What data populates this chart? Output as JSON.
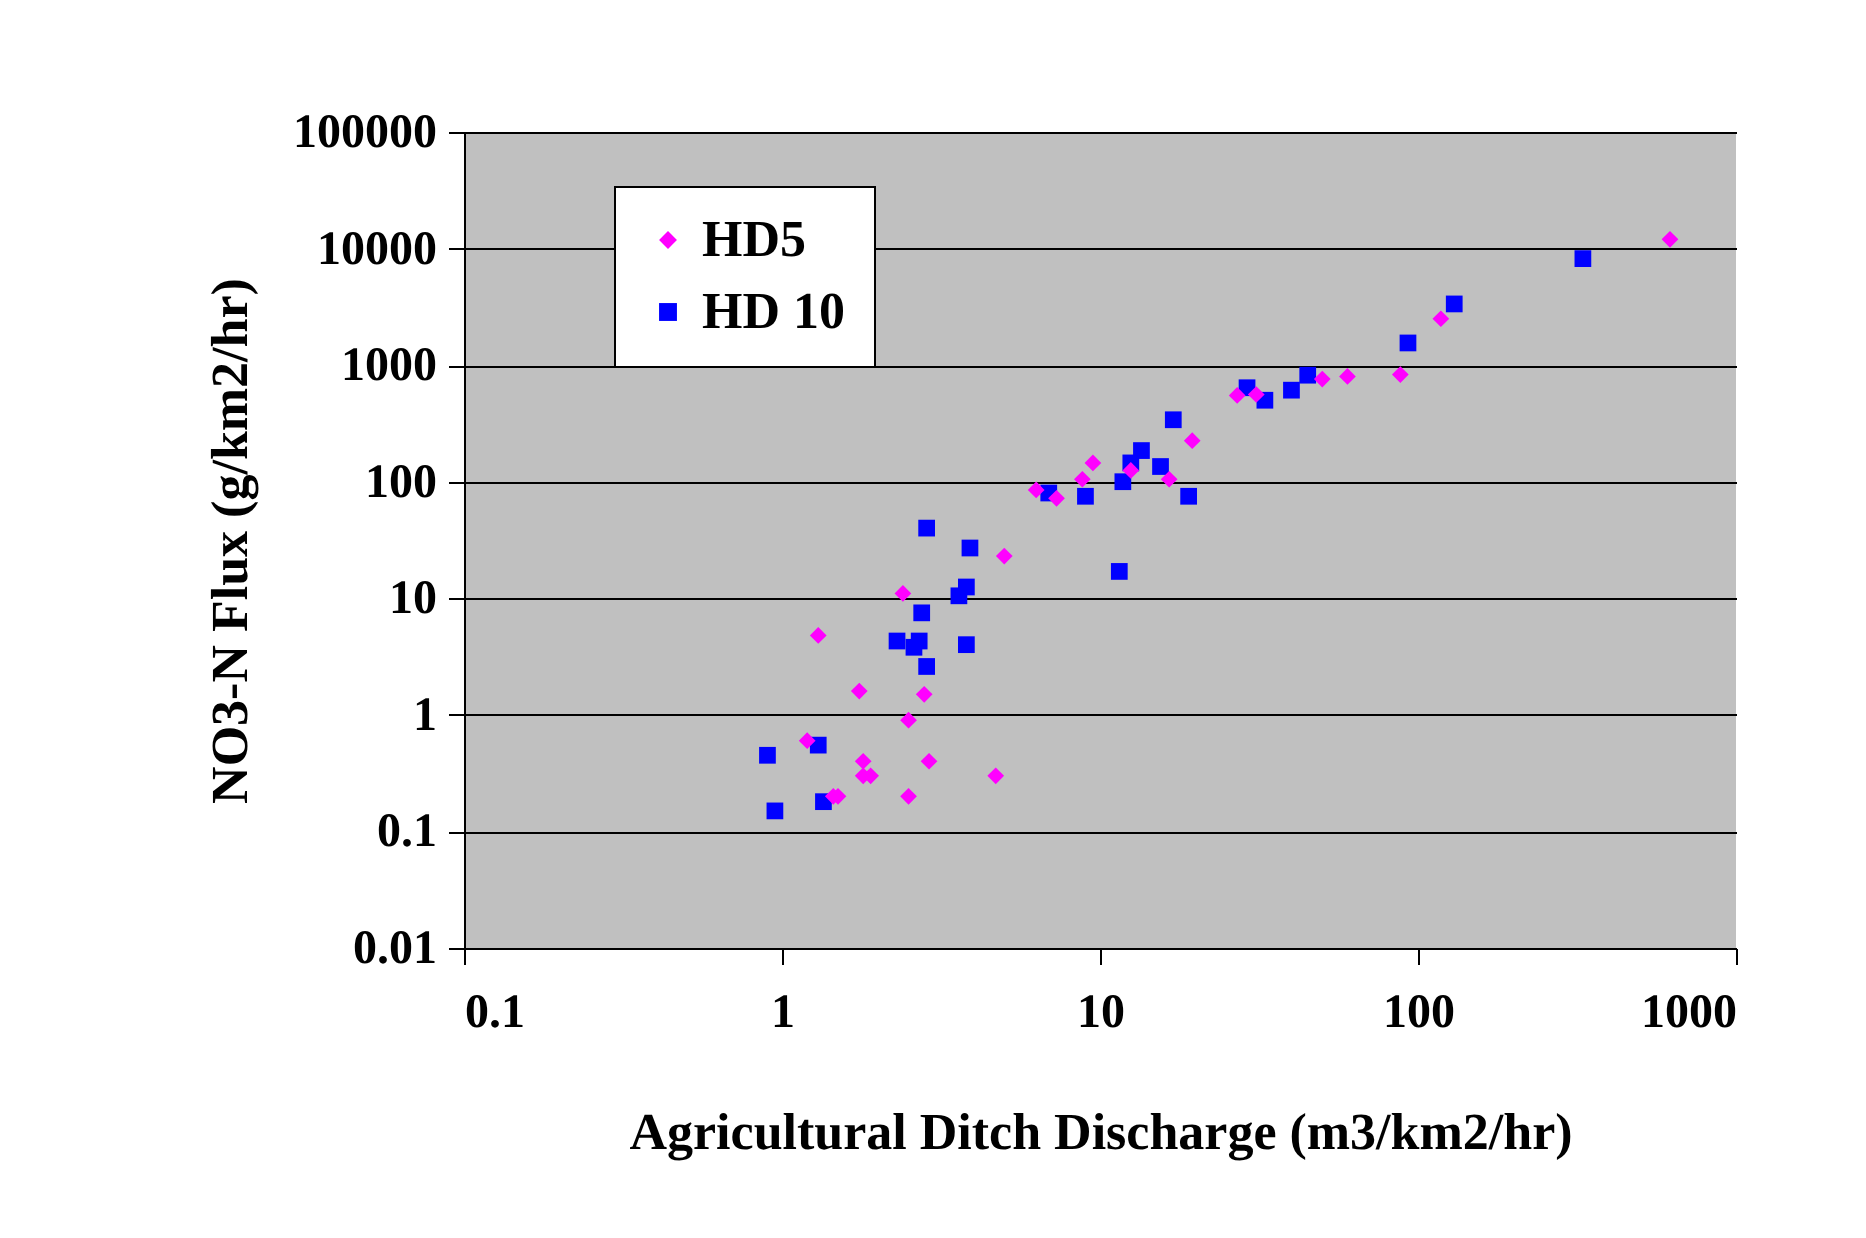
{
  "chart_data": {
    "type": "scatter",
    "xlabel": "Agricultural Ditch Discharge (m3/km2/hr)",
    "ylabel": "NO3-N Flux (g/km2/hr)",
    "log": "xy",
    "xlim": [
      0.1,
      1000
    ],
    "xticks": [
      0.1,
      1,
      10,
      100,
      1000
    ],
    "ylim": [
      0.01,
      100000
    ],
    "yticks": [
      0.01,
      0.1,
      1,
      10,
      100,
      1000,
      10000,
      100000
    ],
    "grid": "y",
    "legend": "top left",
    "series": [
      {
        "name": "HD5",
        "color": "#ff00ff",
        "marker": "diamond",
        "x": [
          1.3,
          1.2,
          1.75,
          1.8,
          1.8,
          1.9,
          1.5,
          1.45,
          2.5,
          2.8,
          2.4,
          2.5,
          2.9,
          4.7,
          5.0,
          6.3,
          7.3,
          8.8,
          9.5,
          12.5,
          16.5,
          19.5,
          27,
          31,
          50,
          60,
          88,
          118,
          620
        ],
        "values": [
          4.8,
          0.6,
          1.6,
          0.4,
          0.3,
          0.3,
          0.2,
          0.2,
          0.9,
          1.5,
          11,
          0.2,
          0.4,
          0.3,
          23,
          85,
          72,
          105,
          145,
          125,
          105,
          225,
          550,
          560,
          760,
          800,
          830,
          2500,
          12000
        ]
      },
      {
        "name": "HD 10",
        "color": "#0000ff",
        "marker": "square",
        "x": [
          0.9,
          0.95,
          1.3,
          1.35,
          2.3,
          2.6,
          2.7,
          2.75,
          2.85,
          2.85,
          3.6,
          3.8,
          3.8,
          3.9,
          6.9,
          9.0,
          11.5,
          11.8,
          12.5,
          13.5,
          15.5,
          17,
          19,
          29,
          33,
          40,
          45,
          93,
          130,
          330
        ],
        "values": [
          0.45,
          0.15,
          0.55,
          0.18,
          4.3,
          3.8,
          4.3,
          7.5,
          2.6,
          40,
          10.5,
          12.5,
          4,
          27,
          80,
          75,
          17,
          100,
          145,
          185,
          135,
          340,
          75,
          640,
          500,
          610,
          820,
          1550,
          3350,
          8200
        ]
      }
    ]
  }
}
